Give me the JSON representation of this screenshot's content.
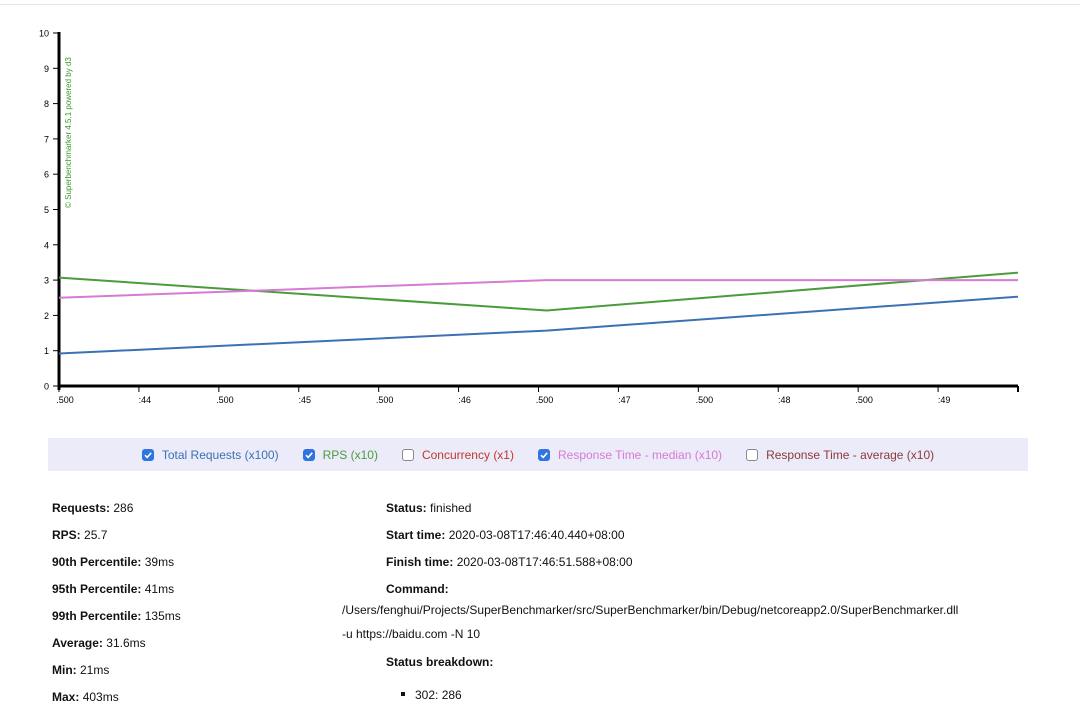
{
  "chart_data": {
    "type": "line",
    "watermark": "© Superbenchmarker 4.5.1 powered by d3",
    "ylim": [
      0,
      10
    ],
    "y_ticks": [
      "0",
      "1",
      "2",
      "3",
      "4",
      "5",
      "6",
      "7",
      "8",
      "9",
      "10"
    ],
    "x_ticks": [
      ".500",
      ":44",
      ".500",
      ":45",
      ".500",
      ":46",
      ".500",
      ":47",
      ".500",
      ":48",
      ".500",
      ":49"
    ],
    "grid": false,
    "series": [
      {
        "name": "Total Requests (x100)",
        "color": "#3c71b3",
        "x": [
          0,
          6.1,
          12
        ],
        "values": [
          0.92,
          1.57,
          2.53
        ]
      },
      {
        "name": "RPS (x10)",
        "color": "#4a9c3b",
        "x": [
          0,
          6.1,
          12
        ],
        "values": [
          3.07,
          2.14,
          3.21
        ]
      },
      {
        "name": "Response Time - median (x10)",
        "color": "#d67ad3",
        "x": [
          0,
          6.1,
          12
        ],
        "values": [
          2.5,
          3.0,
          3.0
        ]
      }
    ]
  },
  "legend": [
    {
      "label": "Total Requests (x100)",
      "checked": true,
      "color": "#3c71b3"
    },
    {
      "label": "RPS (x10)",
      "checked": true,
      "color": "#4a9c3b"
    },
    {
      "label": "Concurrency (x1)",
      "checked": false,
      "color": "#c0392b"
    },
    {
      "label": "Response Time - median (x10)",
      "checked": true,
      "color": "#d67ad3"
    },
    {
      "label": "Response Time - average (x10)",
      "checked": false,
      "color": "#8c3a3a"
    }
  ],
  "stats": {
    "requests_label": "Requests:",
    "requests": "286",
    "rps_label": "RPS:",
    "rps": "25.7",
    "p90_label": "90th Percentile:",
    "p90": "39ms",
    "p95_label": "95th Percentile:",
    "p95": "41ms",
    "p99_label": "99th Percentile:",
    "p99": "135ms",
    "avg_label": "Average:",
    "avg": "31.6ms",
    "min_label": "Min:",
    "min": "21ms",
    "max_label": "Max:",
    "max": "403ms"
  },
  "run": {
    "status_label": "Status:",
    "status": "finished",
    "start_label": "Start time:",
    "start": "2020-03-08T17:46:40.440+08:00",
    "finish_label": "Finish time:",
    "finish": "2020-03-08T17:46:51.588+08:00",
    "command_label": "Command:",
    "command_line1": "/Users/fenghui/Projects/SuperBenchmarker/src/SuperBenchmarker/bin/Debug/netcoreapp2.0/SuperBenchmarker.dll",
    "command_line2": "-u https://baidu.com -N 10",
    "breakdown_label": "Status breakdown:",
    "breakdown": [
      "302: 286"
    ]
  }
}
